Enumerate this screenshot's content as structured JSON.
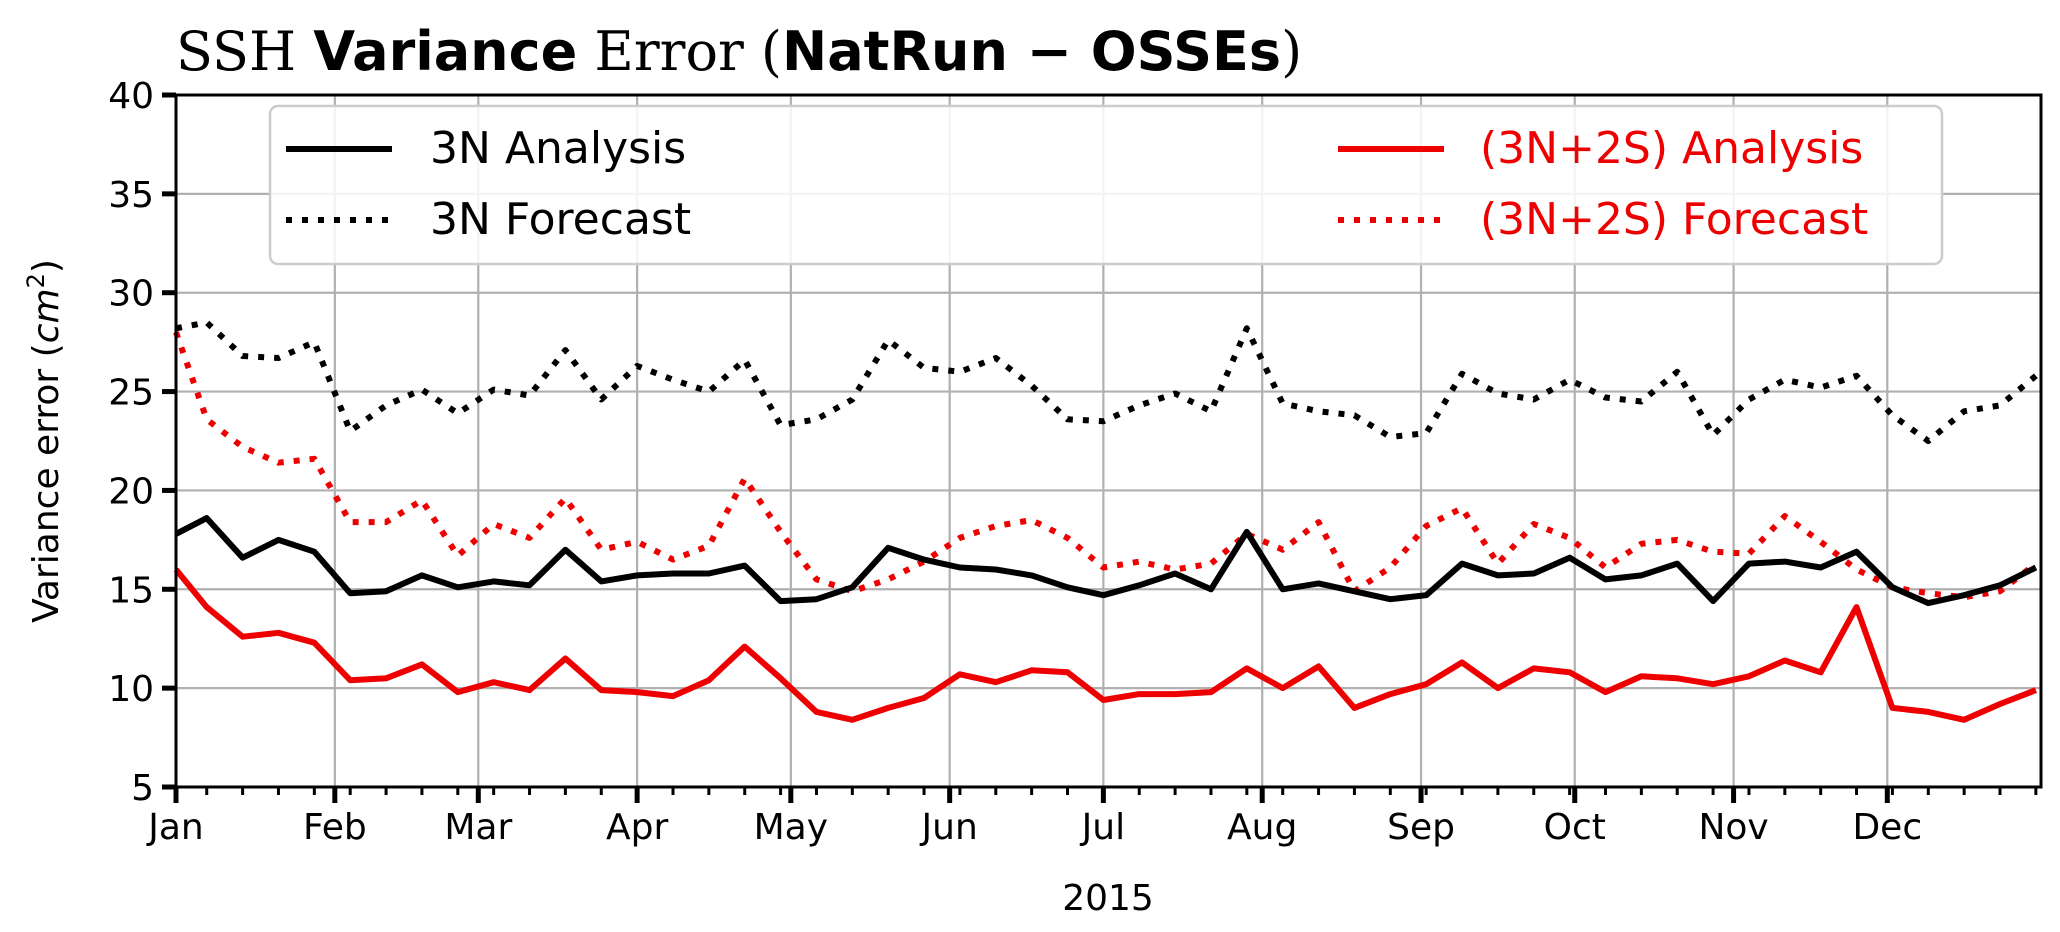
{
  "chart_data": {
    "type": "line",
    "title": {
      "part1": "SSH ",
      "part2": "Variance",
      "part3": " Error (",
      "part4": "NatRun  −  OSSEs",
      "part5": ")"
    },
    "xlabel": "2015",
    "ylabel": "Variance error (",
    "ylabel_unit": "cm",
    "ylabel_sup": "2",
    "ylabel_close": ")",
    "ylim": [
      5,
      40
    ],
    "yticks": [
      "5",
      "10",
      "15",
      "20",
      "25",
      "30",
      "35",
      "40"
    ],
    "xlim": [
      "2015-01-01",
      "2015-12-31"
    ],
    "xticks": [
      {
        "date": "2015-01-01",
        "label": "Jan"
      },
      {
        "date": "2015-02-01",
        "label": "Feb"
      },
      {
        "date": "2015-03-01",
        "label": "Mar"
      },
      {
        "date": "2015-04-01",
        "label": "Apr"
      },
      {
        "date": "2015-05-01",
        "label": "May"
      },
      {
        "date": "2015-06-01",
        "label": "Jun"
      },
      {
        "date": "2015-07-01",
        "label": "Jul"
      },
      {
        "date": "2015-08-01",
        "label": "Aug"
      },
      {
        "date": "2015-09-01",
        "label": "Sep"
      },
      {
        "date": "2015-10-01",
        "label": "Oct"
      },
      {
        "date": "2015-11-01",
        "label": "Nov"
      },
      {
        "date": "2015-12-01",
        "label": "Dec"
      }
    ],
    "grid": true,
    "legend": "top",
    "x": [
      "2015-01-01",
      "2015-01-07",
      "2015-01-14",
      "2015-01-21",
      "2015-01-28",
      "2015-02-04",
      "2015-02-11",
      "2015-02-18",
      "2015-02-25",
      "2015-03-04",
      "2015-03-11",
      "2015-03-18",
      "2015-03-25",
      "2015-04-01",
      "2015-04-08",
      "2015-04-15",
      "2015-04-22",
      "2015-04-29",
      "2015-05-06",
      "2015-05-13",
      "2015-05-20",
      "2015-05-27",
      "2015-06-03",
      "2015-06-10",
      "2015-06-17",
      "2015-06-24",
      "2015-07-01",
      "2015-07-08",
      "2015-07-15",
      "2015-07-22",
      "2015-07-29",
      "2015-08-05",
      "2015-08-12",
      "2015-08-19",
      "2015-08-26",
      "2015-09-02",
      "2015-09-09",
      "2015-09-16",
      "2015-09-23",
      "2015-09-30",
      "2015-10-07",
      "2015-10-14",
      "2015-10-21",
      "2015-10-28",
      "2015-11-04",
      "2015-11-11",
      "2015-11-18",
      "2015-11-25",
      "2015-12-02",
      "2015-12-09",
      "2015-12-16",
      "2015-12-23",
      "2015-12-30"
    ],
    "series": [
      {
        "name": "3N Analysis",
        "color": "#000000",
        "style": "solid",
        "values": [
          17.8,
          18.6,
          16.6,
          17.5,
          16.9,
          14.8,
          14.9,
          15.7,
          15.1,
          15.4,
          15.2,
          17.0,
          15.4,
          15.7,
          15.8,
          15.8,
          16.2,
          14.4,
          14.5,
          15.1,
          17.1,
          16.5,
          16.1,
          16.0,
          15.7,
          15.1,
          14.7,
          15.2,
          15.8,
          15.0,
          17.9,
          15.0,
          15.3,
          14.9,
          14.5,
          14.7,
          16.3,
          15.7,
          15.8,
          16.6,
          15.5,
          15.7,
          16.3,
          14.4,
          16.3,
          16.4,
          16.1,
          16.9,
          15.1,
          14.3,
          14.7,
          15.2,
          16.1
        ]
      },
      {
        "name": "3N Forecast",
        "color": "#000000",
        "style": "dotted",
        "values": [
          28.2,
          28.5,
          26.8,
          26.7,
          27.5,
          23.0,
          24.3,
          25.1,
          23.9,
          25.1,
          24.8,
          27.1,
          24.6,
          26.3,
          25.6,
          25.0,
          26.6,
          23.3,
          23.6,
          24.6,
          27.6,
          26.2,
          26.0,
          26.7,
          25.3,
          23.6,
          23.5,
          24.3,
          24.9,
          24.0,
          28.2,
          24.4,
          24.0,
          23.8,
          22.7,
          22.9,
          25.9,
          24.9,
          24.6,
          25.6,
          24.7,
          24.5,
          26.0,
          22.8,
          24.6,
          25.6,
          25.2,
          25.8,
          23.8,
          22.5,
          24.0,
          24.3,
          25.8
        ]
      },
      {
        "name": "(3N+2S) Analysis",
        "color": "#ee0000",
        "style": "solid",
        "values": [
          16.0,
          14.1,
          12.6,
          12.8,
          12.3,
          10.4,
          10.5,
          11.2,
          9.8,
          10.3,
          9.9,
          11.5,
          9.9,
          9.8,
          9.6,
          10.4,
          12.1,
          10.5,
          8.8,
          8.4,
          9.0,
          9.5,
          10.7,
          10.3,
          10.9,
          10.8,
          9.4,
          9.7,
          9.7,
          9.8,
          11.0,
          10.0,
          11.1,
          9.0,
          9.7,
          10.2,
          11.3,
          10.0,
          11.0,
          10.8,
          9.8,
          10.6,
          10.5,
          10.2,
          10.6,
          11.4,
          10.8,
          14.1,
          9.0,
          8.8,
          8.4,
          9.2,
          9.9
        ]
      },
      {
        "name": "(3N+2S) Forecast",
        "color": "#ee0000",
        "style": "dotted",
        "values": [
          28.0,
          23.6,
          22.2,
          21.4,
          21.6,
          18.4,
          18.4,
          19.5,
          16.7,
          18.3,
          17.6,
          19.6,
          17.0,
          17.4,
          16.5,
          17.2,
          20.6,
          17.9,
          15.5,
          14.9,
          15.5,
          16.4,
          17.6,
          18.2,
          18.5,
          17.6,
          16.1,
          16.4,
          16.0,
          16.3,
          17.8,
          17.0,
          18.4,
          14.9,
          16.1,
          18.2,
          19.1,
          16.3,
          18.3,
          17.6,
          16.1,
          17.3,
          17.5,
          16.9,
          16.8,
          18.7,
          17.4,
          16.0,
          15.1,
          14.8,
          14.6,
          14.9,
          16.3
        ]
      }
    ]
  }
}
